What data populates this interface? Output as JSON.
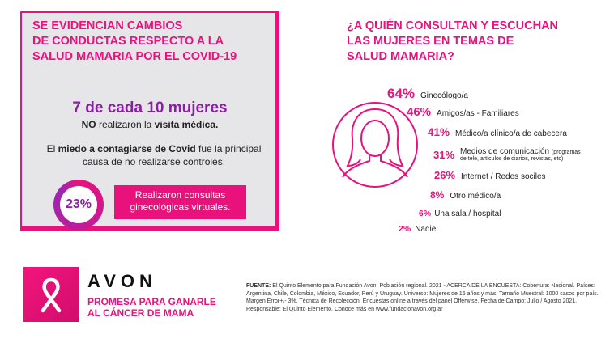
{
  "left_panel": {
    "title_lines": [
      "SE EVIDENCIAN CAMBIOS",
      "DE CONDUCTAS RESPECTO A LA",
      "SALUD MAMARIA POR EL COVID-19"
    ],
    "big_stat": "7 de cada 10 mujeres",
    "sub_stat_bold": "NO",
    "sub_stat_mid": " realizaron la ",
    "sub_stat_bold2": "visita médica.",
    "fear_pre": "El ",
    "fear_bold": "miedo a contagiarse de Covid",
    "fear_post": " fue la principal causa de no realizarse controles.",
    "ring_value": "23%",
    "ring_fraction": 0.23,
    "pink_box_text": "Realizaron consultas ginecológicas virtuales."
  },
  "right_panel": {
    "title_lines": [
      "¿A QUIÉN CONSULTAN Y ESCUCHAN",
      "LAS MUJERES EN TEMAS DE",
      "SALUD MAMARIA?"
    ],
    "items": [
      {
        "pct": "64%",
        "label": "Ginecólogo/a"
      },
      {
        "pct": "46%",
        "label": "Amigos/as - Familiares"
      },
      {
        "pct": "41%",
        "label": "Médico/a clínico/a  de cabecera"
      },
      {
        "pct": "31%",
        "label": "Medios de comunicación",
        "note1": "(programas",
        "note2": "de tele, artículos de diarios, revistas, etc)"
      },
      {
        "pct": "26%",
        "label": "Internet / Redes sociles"
      },
      {
        "pct": "8%",
        "label": "Otro médico/a"
      },
      {
        "pct": "6%",
        "label": "Una sala / hospital"
      },
      {
        "pct": "2%",
        "label": "Nadie"
      }
    ]
  },
  "footer": {
    "brand": "AVON",
    "tagline_lines": [
      "PROMESA PARA GANARLE",
      "AL CÁNCER DE MAMA"
    ],
    "source_label": "FUENTE:",
    "source_text": " El Quinto Elemento para Fundación Avon. Población regional. 2021 - ACERCA DE LA ENCUESTA: Cobertura: Nacional. Países: Argentina, Chile, Colombia, México, Ecuador, Perú y Uruguay. Universo: Mujeres de 16 años y más. Tamaño Muestral: 1000 casos por país. Margen Error+/- 3%. Técnica de Recolección: Encuestas online a través del panel Offerwise. Fecha de Campo: Julio / Agosto 2021. Responsable: El Quinto Elemento. Conoce más en www.fundacionavon.org.ar"
  },
  "colors": {
    "pink": "#e9117c",
    "purple": "#8a1ea6",
    "panel_gray": "#e6e6e8"
  },
  "icons": {
    "woman": "woman-silhouette-icon",
    "ribbon": "pink-ribbon-icon"
  }
}
